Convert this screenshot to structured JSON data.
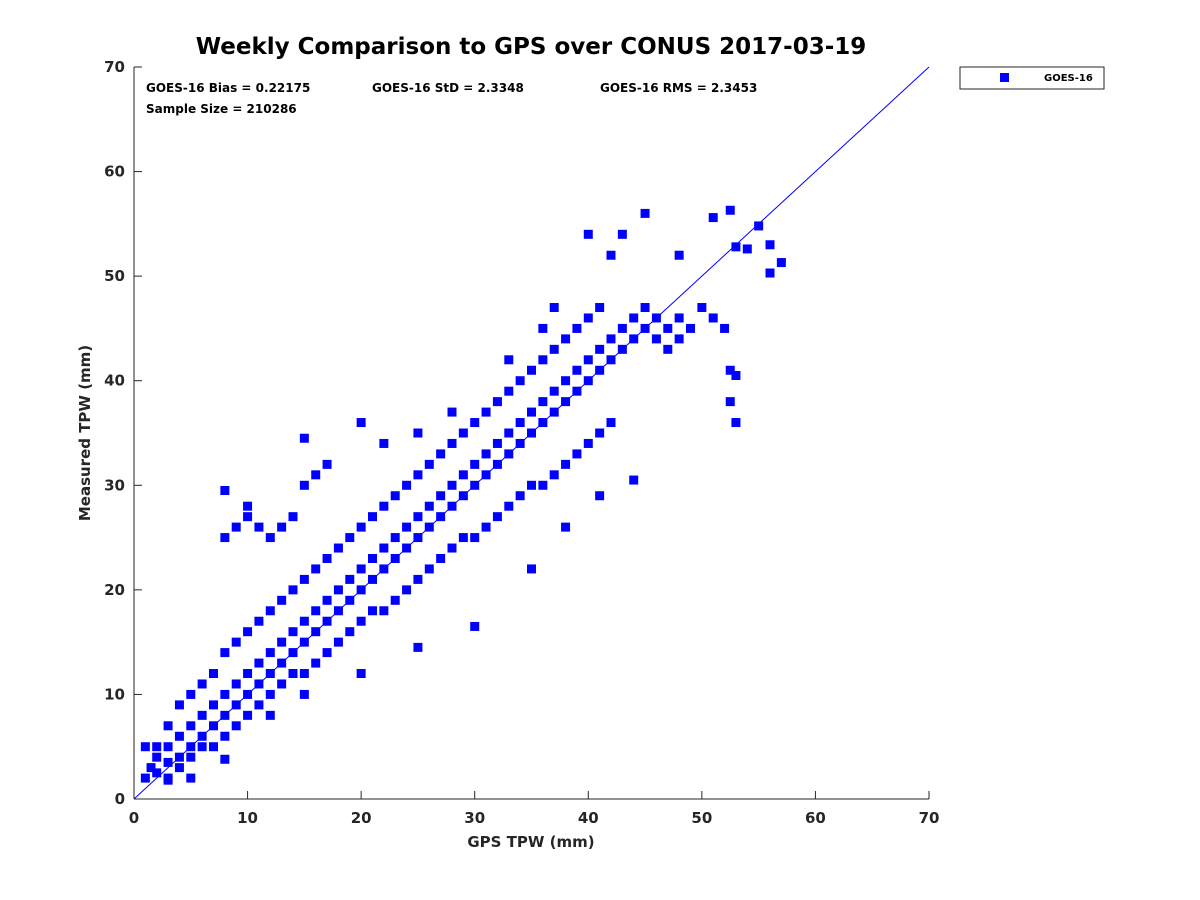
{
  "chart_data": {
    "type": "scatter",
    "title": "Weekly Comparison to GPS over CONUS 2017-03-19",
    "xlabel": "GPS TPW (mm)",
    "ylabel": "Measured TPW (mm)",
    "xlim": [
      0,
      70
    ],
    "ylim": [
      0,
      70
    ],
    "xticks": [
      0,
      10,
      20,
      30,
      40,
      50,
      60,
      70
    ],
    "yticks": [
      0,
      10,
      20,
      30,
      40,
      50,
      60,
      70
    ],
    "grid": false,
    "legend_position": "outside-top-right",
    "colors": {
      "series": "#0000ff",
      "axis": "#262626"
    },
    "stats": {
      "bias": "GOES-16 Bias = 0.22175",
      "std": "GOES-16 StD = 2.3348",
      "rms": "GOES-16 RMS = 2.3453",
      "sample": "Sample Size = 210286"
    },
    "reference_line": {
      "name": "1:1 line",
      "from": [
        0,
        0
      ],
      "to": [
        70,
        70
      ]
    },
    "series": [
      {
        "name": "GOES-16",
        "marker": "square",
        "points": [
          [
            1,
            2
          ],
          [
            1.5,
            3
          ],
          [
            2,
            4
          ],
          [
            2,
            2.5
          ],
          [
            3,
            3.5
          ],
          [
            3,
            5
          ],
          [
            4,
            4
          ],
          [
            4,
            6
          ],
          [
            5,
            5
          ],
          [
            5,
            7
          ],
          [
            6,
            6
          ],
          [
            6,
            8
          ],
          [
            7,
            7
          ],
          [
            7,
            9
          ],
          [
            8,
            8
          ],
          [
            8,
            10
          ],
          [
            9,
            9
          ],
          [
            9,
            11
          ],
          [
            10,
            10
          ],
          [
            10,
            12
          ],
          [
            11,
            11
          ],
          [
            11,
            13
          ],
          [
            12,
            12
          ],
          [
            12,
            14
          ],
          [
            13,
            13
          ],
          [
            13,
            15
          ],
          [
            14,
            14
          ],
          [
            14,
            16
          ],
          [
            15,
            15
          ],
          [
            15,
            17
          ],
          [
            16,
            16
          ],
          [
            16,
            18
          ],
          [
            17,
            17
          ],
          [
            17,
            19
          ],
          [
            18,
            18
          ],
          [
            18,
            20
          ],
          [
            19,
            19
          ],
          [
            19,
            21
          ],
          [
            20,
            20
          ],
          [
            20,
            22
          ],
          [
            21,
            21
          ],
          [
            21,
            23
          ],
          [
            22,
            22
          ],
          [
            22,
            24
          ],
          [
            23,
            23
          ],
          [
            23,
            25
          ],
          [
            24,
            24
          ],
          [
            24,
            26
          ],
          [
            25,
            25
          ],
          [
            25,
            27
          ],
          [
            26,
            26
          ],
          [
            26,
            28
          ],
          [
            27,
            27
          ],
          [
            27,
            29
          ],
          [
            28,
            28
          ],
          [
            28,
            30
          ],
          [
            29,
            29
          ],
          [
            29,
            31
          ],
          [
            30,
            30
          ],
          [
            30,
            32
          ],
          [
            31,
            31
          ],
          [
            31,
            33
          ],
          [
            32,
            32
          ],
          [
            32,
            34
          ],
          [
            33,
            33
          ],
          [
            33,
            35
          ],
          [
            34,
            34
          ],
          [
            34,
            36
          ],
          [
            35,
            35
          ],
          [
            35,
            37
          ],
          [
            36,
            36
          ],
          [
            36,
            38
          ],
          [
            37,
            37
          ],
          [
            37,
            39
          ],
          [
            38,
            38
          ],
          [
            38,
            40
          ],
          [
            39,
            39
          ],
          [
            39,
            41
          ],
          [
            40,
            40
          ],
          [
            40,
            42
          ],
          [
            41,
            41
          ],
          [
            41,
            43
          ],
          [
            42,
            42
          ],
          [
            42,
            44
          ],
          [
            43,
            43
          ],
          [
            43,
            45
          ],
          [
            44,
            44
          ],
          [
            44,
            46
          ],
          [
            45,
            45
          ],
          [
            45,
            47
          ],
          [
            46,
            46
          ],
          [
            46,
            44
          ],
          [
            47,
            45
          ],
          [
            47,
            43
          ],
          [
            48,
            44
          ],
          [
            48,
            46
          ],
          [
            49,
            45
          ],
          [
            50,
            47
          ],
          [
            51,
            46
          ],
          [
            52,
            45
          ],
          [
            2,
            5
          ],
          [
            3,
            7
          ],
          [
            4,
            9
          ],
          [
            5,
            10
          ],
          [
            6,
            11
          ],
          [
            7,
            12
          ],
          [
            8,
            14
          ],
          [
            9,
            15
          ],
          [
            10,
            16
          ],
          [
            11,
            17
          ],
          [
            12,
            18
          ],
          [
            13,
            19
          ],
          [
            14,
            20
          ],
          [
            15,
            21
          ],
          [
            16,
            22
          ],
          [
            17,
            23
          ],
          [
            18,
            24
          ],
          [
            19,
            25
          ],
          [
            20,
            26
          ],
          [
            21,
            27
          ],
          [
            22,
            28
          ],
          [
            23,
            29
          ],
          [
            24,
            30
          ],
          [
            25,
            31
          ],
          [
            26,
            32
          ],
          [
            27,
            33
          ],
          [
            28,
            34
          ],
          [
            29,
            35
          ],
          [
            30,
            36
          ],
          [
            31,
            37
          ],
          [
            32,
            38
          ],
          [
            33,
            39
          ],
          [
            34,
            40
          ],
          [
            35,
            41
          ],
          [
            36,
            42
          ],
          [
            37,
            43
          ],
          [
            38,
            44
          ],
          [
            39,
            45
          ],
          [
            40,
            46
          ],
          [
            41,
            47
          ],
          [
            3,
            2
          ],
          [
            4,
            3
          ],
          [
            5,
            4
          ],
          [
            6,
            5
          ],
          [
            7,
            5
          ],
          [
            8,
            6
          ],
          [
            9,
            7
          ],
          [
            10,
            8
          ],
          [
            11,
            9
          ],
          [
            12,
            10
          ],
          [
            13,
            11
          ],
          [
            14,
            12
          ],
          [
            15,
            12
          ],
          [
            16,
            13
          ],
          [
            17,
            14
          ],
          [
            18,
            15
          ],
          [
            19,
            16
          ],
          [
            20,
            17
          ],
          [
            21,
            18
          ],
          [
            22,
            18
          ],
          [
            23,
            19
          ],
          [
            24,
            20
          ],
          [
            25,
            21
          ],
          [
            26,
            22
          ],
          [
            27,
            23
          ],
          [
            28,
            24
          ],
          [
            29,
            25
          ],
          [
            30,
            25
          ],
          [
            31,
            26
          ],
          [
            32,
            27
          ],
          [
            33,
            28
          ],
          [
            34,
            29
          ],
          [
            35,
            30
          ],
          [
            36,
            30
          ],
          [
            37,
            31
          ],
          [
            38,
            32
          ],
          [
            39,
            33
          ],
          [
            40,
            34
          ],
          [
            41,
            35
          ],
          [
            42,
            36
          ],
          [
            8,
            25
          ],
          [
            9,
            26
          ],
          [
            10,
            27
          ],
          [
            11,
            26
          ],
          [
            12,
            25
          ],
          [
            13,
            26
          ],
          [
            14,
            27
          ],
          [
            15,
            30
          ],
          [
            16,
            31
          ],
          [
            17,
            32
          ],
          [
            8,
            29.5
          ],
          [
            10,
            28
          ],
          [
            15,
            34.5
          ],
          [
            20,
            36
          ],
          [
            22,
            34
          ],
          [
            25,
            35
          ],
          [
            28,
            37
          ],
          [
            33,
            42
          ],
          [
            36,
            45
          ],
          [
            37,
            47
          ],
          [
            42,
            52
          ],
          [
            40,
            54
          ],
          [
            43,
            54
          ],
          [
            45,
            56
          ],
          [
            48,
            52
          ],
          [
            51,
            55.6
          ],
          [
            52.5,
            56.3
          ],
          [
            55,
            54.8
          ],
          [
            56,
            50.3
          ],
          [
            57,
            51.3
          ],
          [
            56,
            53
          ],
          [
            53,
            52.8
          ],
          [
            54,
            52.6
          ],
          [
            52.5,
            41
          ],
          [
            53,
            40.5
          ],
          [
            52.5,
            38
          ],
          [
            53,
            36
          ],
          [
            44,
            30.5
          ],
          [
            41,
            29
          ],
          [
            38,
            26
          ],
          [
            35,
            22
          ],
          [
            30,
            16.5
          ],
          [
            25,
            14.5
          ],
          [
            20,
            12
          ],
          [
            15,
            10
          ],
          [
            12,
            8
          ],
          [
            8,
            3.8
          ],
          [
            5,
            2
          ],
          [
            3,
            1.8
          ],
          [
            1,
            5
          ]
        ]
      }
    ]
  }
}
